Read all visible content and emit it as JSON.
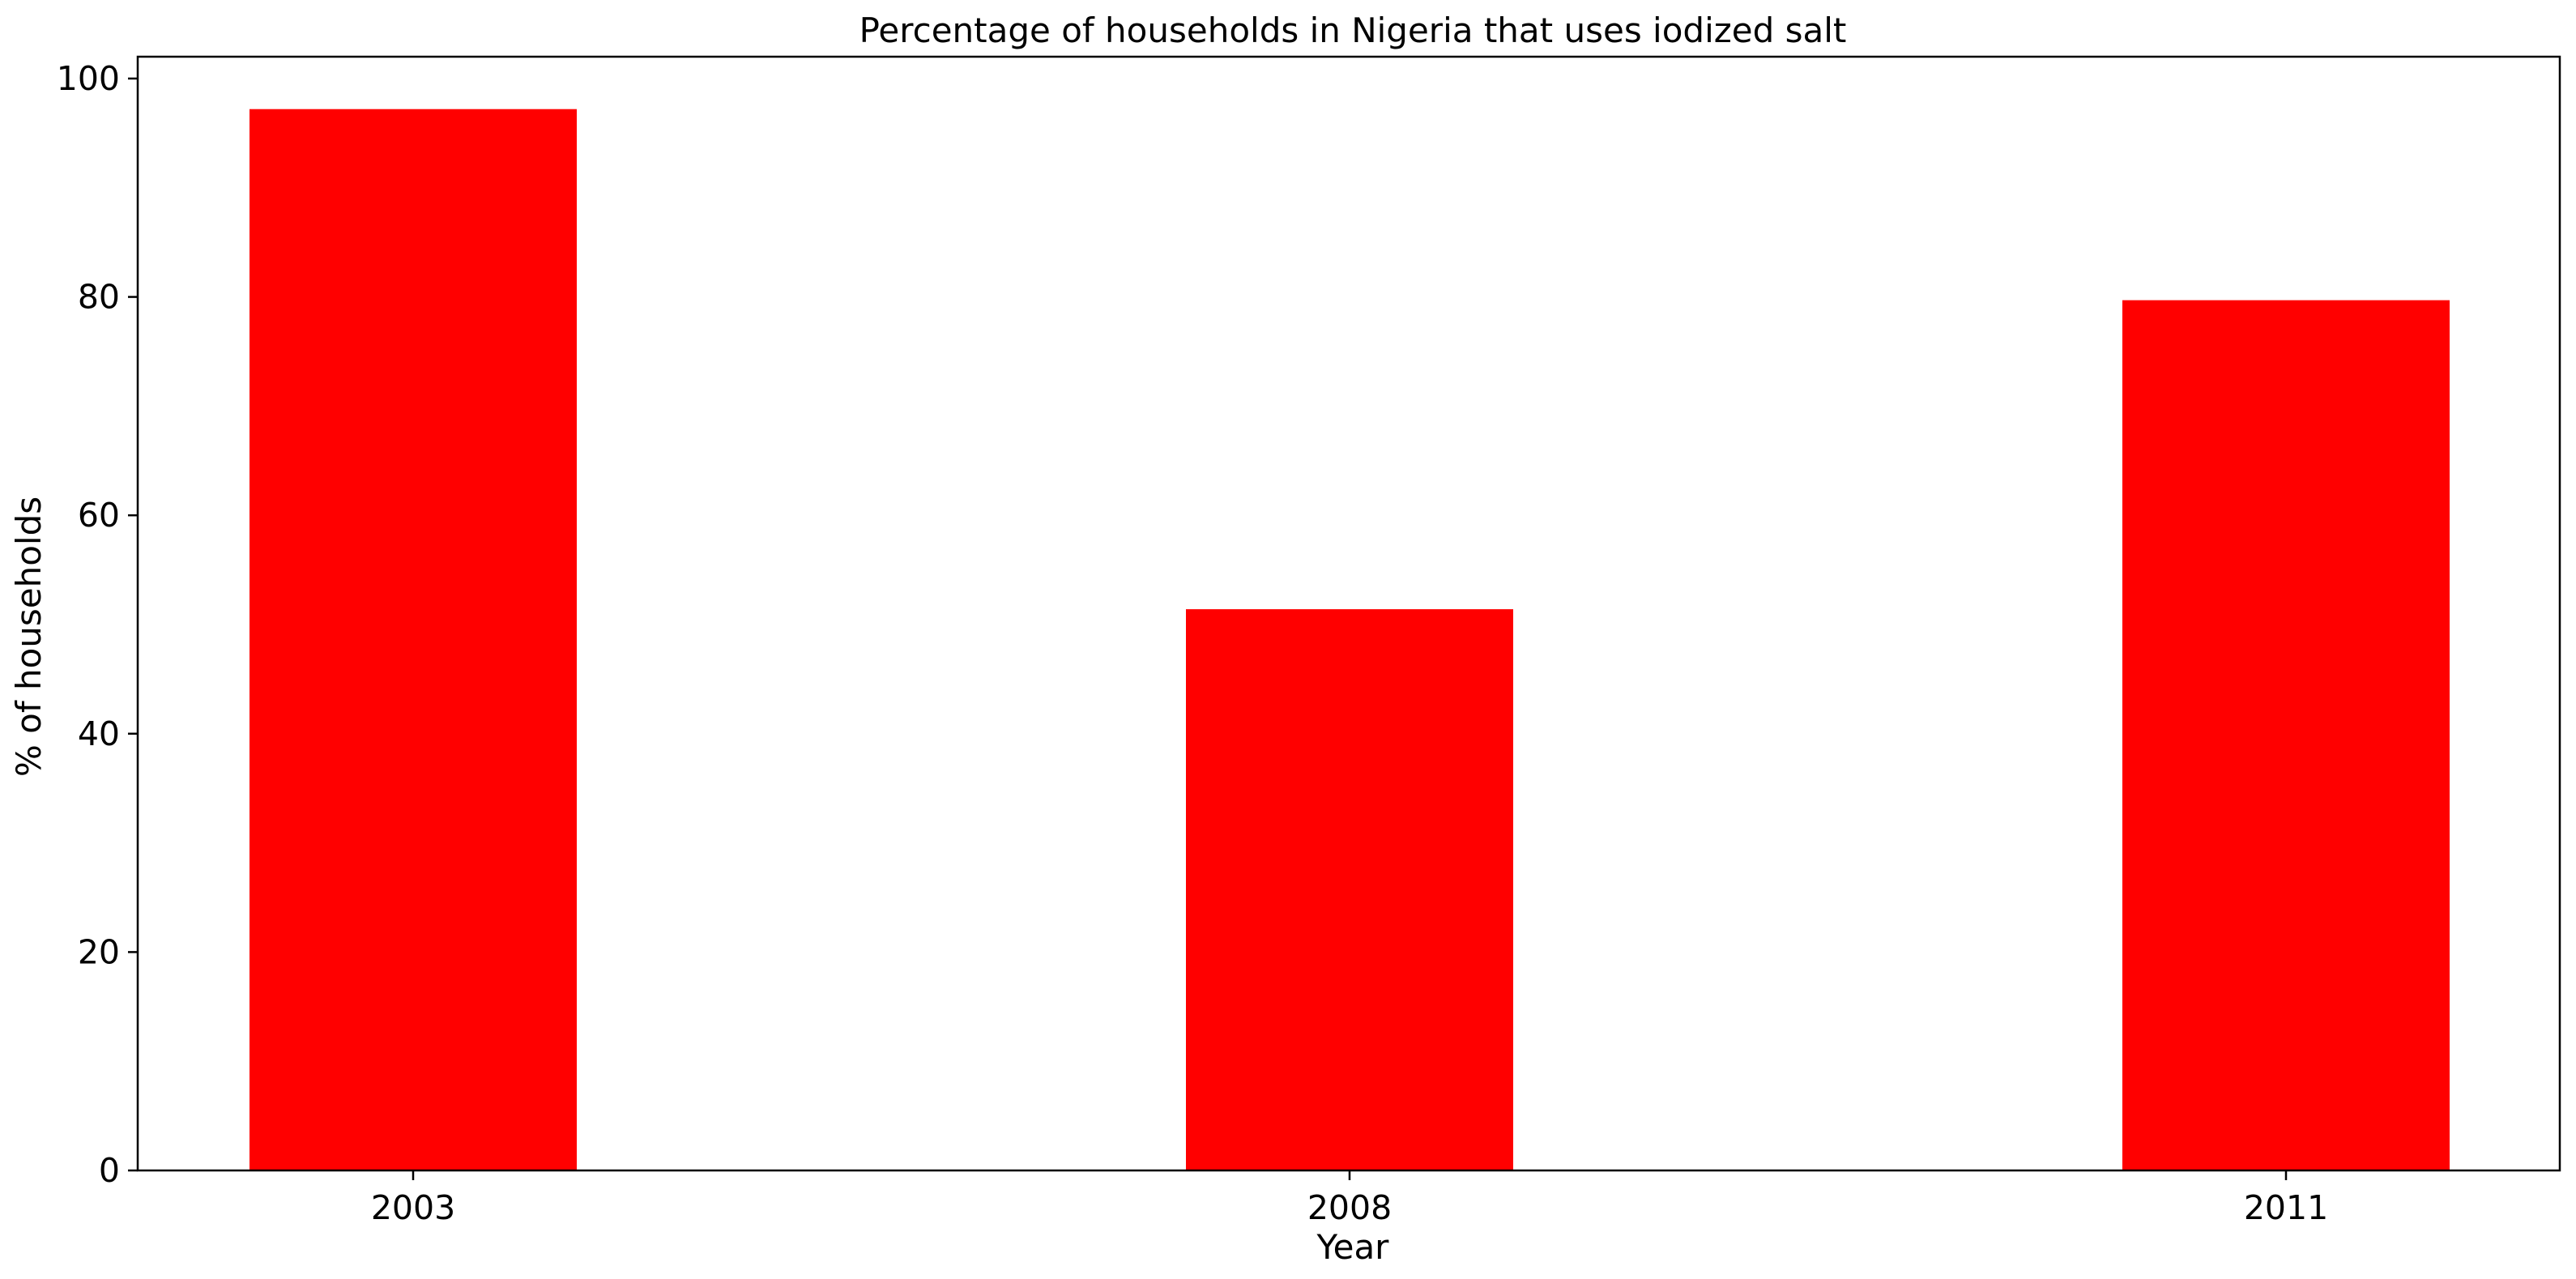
{
  "chart_data": {
    "type": "bar",
    "title": "Percentage of households in Nigeria that uses iodized salt",
    "xlabel": "Year",
    "ylabel": "% of households",
    "categories": [
      "2003",
      "2008",
      "2011"
    ],
    "values": [
      97.2,
      51.4,
      79.7
    ],
    "ylim": [
      0,
      102
    ],
    "yticks": [
      0,
      20,
      40,
      60,
      80,
      100
    ],
    "grid": false,
    "legend": "none",
    "bar_color": "#ff0000"
  }
}
